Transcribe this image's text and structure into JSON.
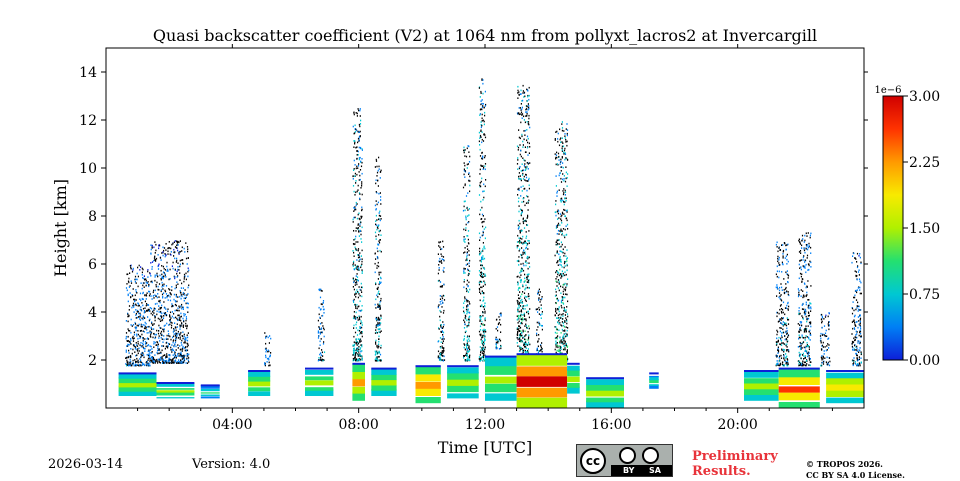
{
  "chart_data": {
    "type": "heatmap",
    "title": "Quasi backscatter coefficient (V2) at 1064 nm from pollyxt_lacros2 at Invercargill",
    "xlabel": "Time [UTC]",
    "ylabel": "Height [km]",
    "xlim_hours": [
      0,
      24
    ],
    "ylim_km": [
      0,
      15
    ],
    "x_ticks": [
      {
        "value": 4,
        "label": "04:00"
      },
      {
        "value": 8,
        "label": "08:00"
      },
      {
        "value": 12,
        "label": "12:00"
      },
      {
        "value": 16,
        "label": "16:00"
      },
      {
        "value": 20,
        "label": "20:00"
      }
    ],
    "y_ticks": [
      {
        "value": 2,
        "label": "2"
      },
      {
        "value": 4,
        "label": "4"
      },
      {
        "value": 6,
        "label": "6"
      },
      {
        "value": 8,
        "label": "8"
      },
      {
        "value": 10,
        "label": "10"
      },
      {
        "value": 12,
        "label": "12"
      },
      {
        "value": 14,
        "label": "14"
      }
    ],
    "colorbar": {
      "multiplier": "1e−6",
      "range": [
        0,
        3e-06
      ],
      "ticks": [
        {
          "value": 0.0,
          "label": "0.00"
        },
        {
          "value": 0.75,
          "label": "0.75"
        },
        {
          "value": 1.5,
          "label": "1.50"
        },
        {
          "value": 2.25,
          "label": "2.25"
        },
        {
          "value": 3.0,
          "label": "3.00"
        }
      ],
      "colors": [
        "#0d1fd8",
        "#007ff5",
        "#00c8d2",
        "#24e070",
        "#b0f000",
        "#f8ea00",
        "#ff9a00",
        "#ff3300",
        "#d00000"
      ]
    },
    "low_layer": [
      {
        "t0": 0.4,
        "t1": 1.6,
        "h0": 0.5,
        "h1": 1.4,
        "level": 1.5
      },
      {
        "t0": 1.6,
        "t1": 2.8,
        "h0": 0.4,
        "h1": 1.0,
        "level": 1.2
      },
      {
        "t0": 3.0,
        "t1": 3.6,
        "h0": 0.4,
        "h1": 0.9,
        "level": 1.0
      },
      {
        "t0": 4.5,
        "t1": 5.2,
        "h0": 0.5,
        "h1": 1.5,
        "level": 1.3
      },
      {
        "t0": 6.3,
        "t1": 7.2,
        "h0": 0.5,
        "h1": 1.6,
        "level": 1.4
      },
      {
        "t0": 7.8,
        "t1": 8.2,
        "h0": 0.3,
        "h1": 1.8,
        "level": 1.9
      },
      {
        "t0": 8.4,
        "t1": 9.2,
        "h0": 0.5,
        "h1": 1.6,
        "level": 1.3
      },
      {
        "t0": 9.8,
        "t1": 10.6,
        "h0": 0.2,
        "h1": 1.7,
        "level": 2.2
      },
      {
        "t0": 10.8,
        "t1": 11.8,
        "h0": 0.4,
        "h1": 1.7,
        "level": 1.5
      },
      {
        "t0": 12.0,
        "t1": 13.0,
        "h0": 0.3,
        "h1": 2.1,
        "level": 1.4
      },
      {
        "t0": 13.0,
        "t1": 14.6,
        "h0": 0.0,
        "h1": 2.2,
        "level": 2.8
      },
      {
        "t0": 14.6,
        "t1": 15.0,
        "h0": 0.6,
        "h1": 1.8,
        "level": 1.2
      },
      {
        "t0": 15.2,
        "t1": 16.4,
        "h0": 0.0,
        "h1": 1.2,
        "level": 1.3
      },
      {
        "t0": 17.2,
        "t1": 17.5,
        "h0": 0.8,
        "h1": 1.4,
        "level": 1.0
      },
      {
        "t0": 20.2,
        "t1": 21.3,
        "h0": 0.3,
        "h1": 1.5,
        "level": 1.4
      },
      {
        "t0": 21.3,
        "t1": 22.6,
        "h0": 0.0,
        "h1": 1.6,
        "level": 2.3
      },
      {
        "t0": 22.8,
        "t1": 24.0,
        "h0": 0.2,
        "h1": 1.5,
        "level": 1.6
      }
    ],
    "upper_plumes": [
      {
        "t0": 0.6,
        "t1": 1.4,
        "h0": 1.8,
        "h1": 6.0,
        "level": 0.2
      },
      {
        "t0": 1.4,
        "t1": 2.6,
        "h0": 1.9,
        "h1": 7.0,
        "level": 0.15
      },
      {
        "t0": 5.0,
        "t1": 5.2,
        "h0": 1.8,
        "h1": 3.2,
        "level": 0.2
      },
      {
        "t0": 6.7,
        "t1": 6.9,
        "h0": 2.0,
        "h1": 5.0,
        "level": 0.25
      },
      {
        "t0": 7.8,
        "t1": 8.1,
        "h0": 2.0,
        "h1": 12.5,
        "level": 0.45
      },
      {
        "t0": 8.5,
        "t1": 8.7,
        "h0": 2.0,
        "h1": 10.5,
        "level": 0.4
      },
      {
        "t0": 10.5,
        "t1": 10.7,
        "h0": 2.0,
        "h1": 7.0,
        "level": 0.35
      },
      {
        "t0": 11.3,
        "t1": 11.5,
        "h0": 2.0,
        "h1": 11.0,
        "level": 0.45
      },
      {
        "t0": 11.8,
        "t1": 12.0,
        "h0": 2.0,
        "h1": 14.0,
        "level": 0.5
      },
      {
        "t0": 12.3,
        "t1": 12.5,
        "h0": 2.5,
        "h1": 4.0,
        "level": 0.35
      },
      {
        "t0": 13.0,
        "t1": 13.4,
        "h0": 2.0,
        "h1": 13.5,
        "level": 0.55
      },
      {
        "t0": 13.6,
        "t1": 13.8,
        "h0": 2.2,
        "h1": 5.0,
        "level": 0.4
      },
      {
        "t0": 14.2,
        "t1": 14.6,
        "h0": 2.0,
        "h1": 12.0,
        "level": 0.55
      },
      {
        "t0": 21.2,
        "t1": 21.6,
        "h0": 1.8,
        "h1": 7.0,
        "level": 0.3
      },
      {
        "t0": 21.9,
        "t1": 22.3,
        "h0": 1.8,
        "h1": 7.5,
        "level": 0.3
      },
      {
        "t0": 22.6,
        "t1": 22.9,
        "h0": 1.8,
        "h1": 4.0,
        "level": 0.2
      },
      {
        "t0": 23.6,
        "t1": 23.9,
        "h0": 1.8,
        "h1": 6.5,
        "level": 0.25
      }
    ]
  },
  "footer": {
    "date": "2026-03-14",
    "version": "Version: 4.0",
    "cc_text": "cc",
    "cc_by": "BY",
    "cc_sa": "SA",
    "prelim_line1": "Preliminary",
    "prelim_line2": "Results.",
    "copyright_line1": "© TROPOS 2026.",
    "copyright_line2": "CC BY SA 4.0 License."
  }
}
